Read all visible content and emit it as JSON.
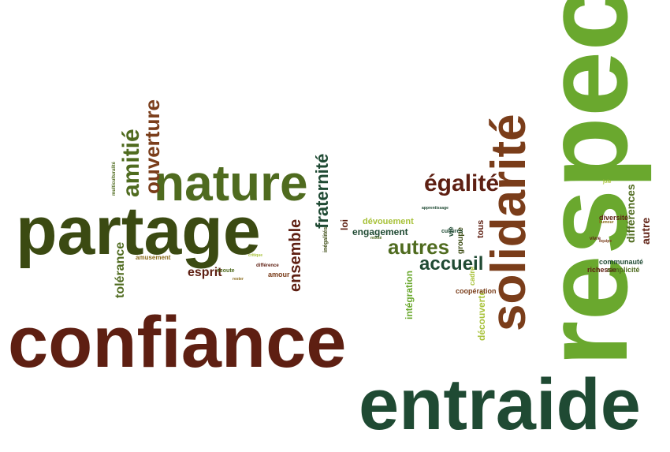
{
  "words": {
    "respect": "respect",
    "entraide": "entraide",
    "confiance": "confiance",
    "partage": "partage",
    "nature": "nature",
    "solidarite": "solidarité",
    "egalite": "égalité",
    "amitie": "amitié",
    "ouverture": "ouverture",
    "fraternite": "fraternité",
    "ensemble": "ensemble",
    "tolerance": "tolérance",
    "autres": "autres",
    "accueil": "accueil",
    "engagement": "engagement",
    "devouement": "dévouement",
    "esprit": "esprit",
    "integration": "intégration",
    "decouverte": "découverte",
    "differences": "différences",
    "autre": "autre",
    "diversite": "diversité",
    "communaute": "communauté",
    "richesse": "richesse",
    "simplicite": "simplicité",
    "cooperation": "coopération",
    "groupe": "groupe",
    "tous": "tous",
    "cadre": "cadre",
    "vie": "vie",
    "loi": "loi",
    "amour": "amour",
    "amusement": "amusement",
    "ecoute": "écoute",
    "inegalites": "inégalités",
    "cultures": "cultures",
    "multiculturalite": "multiculturalité",
    "difference": "différence",
    "joie": "joie",
    "vivre": "vivre",
    "mixite": "mixité",
    "equipe": "équipe",
    "humour": "humour",
    "critique": "critique",
    "rester": "rester",
    "apprentissage": "apprentissage"
  }
}
